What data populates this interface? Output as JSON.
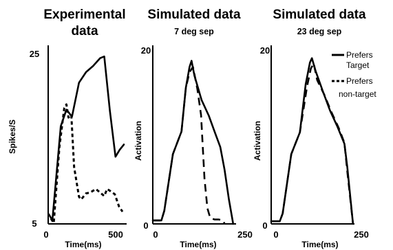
{
  "chart_data": [
    {
      "type": "line",
      "title": "Experimental data",
      "xlabel": "Time(ms)",
      "ylabel": "Spikes/S",
      "xlim": [
        -20,
        520
      ],
      "ylim": [
        5,
        25
      ],
      "x_ticks": [
        "0",
        "500"
      ],
      "y_ticks": [
        "25",
        "5"
      ],
      "series": [
        {
          "name": "Prefers Target",
          "points": [
            [
              -15,
              6.1
            ],
            [
              10,
              5.4
            ],
            [
              70,
              16.2
            ],
            [
              110,
              18.1
            ],
            [
              150,
              17.3
            ],
            [
              200,
              21.2
            ],
            [
              250,
              22.4
            ],
            [
              300,
              23.1
            ],
            [
              350,
              24.0
            ],
            [
              380,
              24.2
            ],
            [
              420,
              18.0
            ],
            [
              460,
              12.7
            ],
            [
              490,
              13.5
            ],
            [
              520,
              14.1
            ]
          ]
        },
        {
          "name": "Prefers non-target",
          "points": [
            [
              0,
              5.6
            ],
            [
              20,
              5.1
            ],
            [
              60,
              13.8
            ],
            [
              95,
              18.3
            ],
            [
              110,
              18.7
            ],
            [
              125,
              17.2
            ],
            [
              145,
              17.5
            ],
            [
              165,
              11.5
            ],
            [
              200,
              8.1
            ],
            [
              215,
              7.8
            ],
            [
              250,
              8.5
            ],
            [
              280,
              8.6
            ],
            [
              320,
              9.0
            ],
            [
              350,
              8.6
            ],
            [
              380,
              8.2
            ],
            [
              400,
              9.0
            ],
            [
              420,
              8.8
            ],
            [
              455,
              8.4
            ],
            [
              485,
              7.0
            ],
            [
              510,
              6.4
            ]
          ]
        }
      ]
    },
    {
      "type": "line",
      "title": "Simulated data",
      "subtitle": "7 deg sep",
      "xlabel": "Time(ms)",
      "ylabel": "Activation",
      "xlim": [
        -40,
        250
      ],
      "ylim": [
        0,
        20
      ],
      "x_ticks": [
        "0",
        "250"
      ],
      "y_ticks": [
        "20",
        "0"
      ],
      "series": [
        {
          "name": "Prefers Target",
          "points": [
            [
              -40,
              0.4
            ],
            [
              -10,
              0.4
            ],
            [
              0,
              1.5
            ],
            [
              30,
              8.0
            ],
            [
              60,
              10.6
            ],
            [
              75,
              15.6
            ],
            [
              88,
              18.0
            ],
            [
              95,
              18.7
            ],
            [
              105,
              17.0
            ],
            [
              130,
              14.2
            ],
            [
              155,
              12.4
            ],
            [
              175,
              10.6
            ],
            [
              195,
              8.8
            ],
            [
              210,
              6.2
            ],
            [
              225,
              2.8
            ],
            [
              240,
              0
            ]
          ]
        },
        {
          "name": "Prefers non-target",
          "points": [
            [
              -40,
              0.4
            ],
            [
              -10,
              0.4
            ],
            [
              0,
              1.5
            ],
            [
              30,
              8.0
            ],
            [
              60,
              10.6
            ],
            [
              75,
              15.6
            ],
            [
              88,
              17.4
            ],
            [
              100,
              18.0
            ],
            [
              115,
              15.5
            ],
            [
              128,
              12.5
            ],
            [
              140,
              5.2
            ],
            [
              150,
              1.8
            ],
            [
              160,
              0.7
            ],
            [
              175,
              0.5
            ],
            [
              190,
              0.5
            ],
            [
              205,
              0.4
            ],
            [
              210,
              0
            ]
          ]
        }
      ]
    },
    {
      "type": "line",
      "title": "Simulated data",
      "subtitle": "23 deg sep",
      "xlabel": "Time(ms)",
      "ylabel": "Activation",
      "xlim": [
        -40,
        250
      ],
      "ylim": [
        0,
        20
      ],
      "x_ticks": [
        "0",
        "250"
      ],
      "y_ticks": [
        "20",
        "0"
      ],
      "series": [
        {
          "name": "Prefers Target",
          "points": [
            [
              -40,
              0.3
            ],
            [
              -10,
              0.3
            ],
            [
              0,
              1.2
            ],
            [
              30,
              8.0
            ],
            [
              60,
              10.5
            ],
            [
              80,
              16.0
            ],
            [
              95,
              18.5
            ],
            [
              102,
              19.0
            ],
            [
              115,
              17.5
            ],
            [
              140,
              15.2
            ],
            [
              165,
              13.0
            ],
            [
              190,
              11.2
            ],
            [
              215,
              9.2
            ],
            [
              225,
              6.5
            ],
            [
              245,
              0
            ]
          ]
        },
        {
          "name": "Prefers non-target",
          "points": [
            [
              -40,
              0.3
            ],
            [
              -10,
              0.3
            ],
            [
              0,
              1.2
            ],
            [
              30,
              8.0
            ],
            [
              60,
              10.5
            ],
            [
              85,
              15.8
            ],
            [
              98,
              17.8
            ],
            [
              108,
              18.4
            ],
            [
              120,
              16.5
            ],
            [
              145,
              14.8
            ],
            [
              170,
              12.8
            ],
            [
              195,
              11.0
            ],
            [
              215,
              9.3
            ],
            [
              225,
              6.0
            ],
            [
              245,
              0
            ]
          ]
        }
      ]
    }
  ],
  "legend": {
    "target_label_1": "Prefers",
    "target_label_2": "Target",
    "nontarget_label_1": "Prefers",
    "nontarget_label_2": "non-target"
  },
  "panels_text": {
    "p1_title_1": "Experimental",
    "p1_title_2": "data",
    "p2_title": "Simulated data",
    "p2_subtitle": "7 deg sep",
    "p3_title": "Simulated data",
    "p3_subtitle": "23 deg sep"
  }
}
